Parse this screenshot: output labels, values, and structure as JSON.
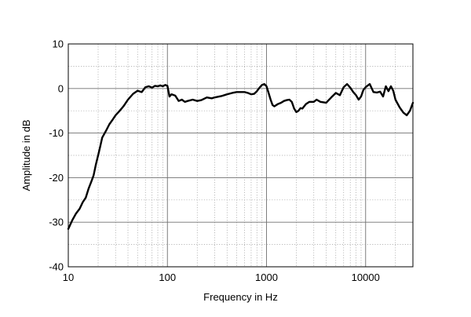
{
  "chart_data": {
    "type": "line",
    "title": "",
    "xlabel": "Frequency in Hz",
    "ylabel": "Amplitude in dB",
    "xscale": "log",
    "xlim": [
      10,
      30000
    ],
    "ylim": [
      -40,
      10
    ],
    "xticks": [
      10,
      100,
      1000,
      10000
    ],
    "xtick_labels": [
      "10",
      "100",
      "1000",
      "10000"
    ],
    "yticks": [
      10,
      0,
      -10,
      -20,
      -30,
      -40
    ],
    "ytick_labels": [
      "10",
      "0",
      "-10",
      "-20",
      "-30",
      "-40"
    ],
    "grid": true,
    "legend": "none",
    "colors": {
      "line": "#000000",
      "grid_major": "#707070",
      "grid_minor": "#a0a0a0",
      "frame": "#000000"
    },
    "series": [
      {
        "x": [
          10,
          11,
          12,
          13,
          14,
          15,
          16,
          17,
          18,
          19,
          20,
          21,
          22,
          24,
          26,
          28,
          30,
          33,
          36,
          40,
          45,
          50,
          55,
          60,
          65,
          70,
          75,
          80,
          85,
          90,
          95,
          100,
          105,
          110,
          120,
          130,
          140,
          150,
          160,
          180,
          200,
          220,
          250,
          280,
          300,
          350,
          400,
          450,
          500,
          550,
          600,
          650,
          700,
          750,
          800,
          850,
          900,
          950,
          1000,
          1050,
          1100,
          1150,
          1200,
          1300,
          1400,
          1500,
          1600,
          1700,
          1800,
          1900,
          2000,
          2100,
          2200,
          2300,
          2500,
          2700,
          3000,
          3200,
          3500,
          4000,
          4500,
          5000,
          5500,
          6000,
          6500,
          7000,
          7500,
          8000,
          8500,
          9000,
          9500,
          10000,
          11000,
          12000,
          13000,
          14000,
          15000,
          16000,
          17000,
          18000,
          19000,
          20000,
          22000,
          24000,
          26000,
          28000,
          30000
        ],
        "y": [
          -31.5,
          -29.5,
          -28,
          -27,
          -25.5,
          -24.5,
          -22.5,
          -21,
          -19.5,
          -17,
          -15,
          -13,
          -11,
          -9.5,
          -8,
          -7,
          -6,
          -5,
          -4,
          -2.5,
          -1.2,
          -0.5,
          -0.8,
          0.3,
          0.5,
          0.2,
          0.6,
          0.5,
          0.7,
          0.5,
          0.8,
          0.6,
          -1.8,
          -1.3,
          -1.6,
          -2.8,
          -2.5,
          -3.0,
          -2.8,
          -2.5,
          -2.8,
          -2.6,
          -2.0,
          -2.2,
          -2.0,
          -1.7,
          -1.3,
          -1.0,
          -0.8,
          -0.8,
          -0.8,
          -1.0,
          -1.3,
          -1.2,
          -0.6,
          0.2,
          0.8,
          1.0,
          0.5,
          -1.0,
          -2.5,
          -3.7,
          -4.0,
          -3.5,
          -3.2,
          -2.8,
          -2.6,
          -2.5,
          -3.0,
          -4.5,
          -5.3,
          -5.0,
          -4.4,
          -4.5,
          -3.5,
          -3.0,
          -3.0,
          -2.5,
          -3.0,
          -3.2,
          -2.0,
          -1.0,
          -1.5,
          0.3,
          1.0,
          0.2,
          -0.8,
          -1.5,
          -2.5,
          -1.8,
          -0.3,
          0.3,
          1.0,
          -0.8,
          -0.9,
          -0.7,
          -1.8,
          0.5,
          -0.6,
          0.5,
          -0.5,
          -2.5,
          -4.2,
          -5.4,
          -6.0,
          -5.0,
          -3.2
        ]
      }
    ]
  }
}
